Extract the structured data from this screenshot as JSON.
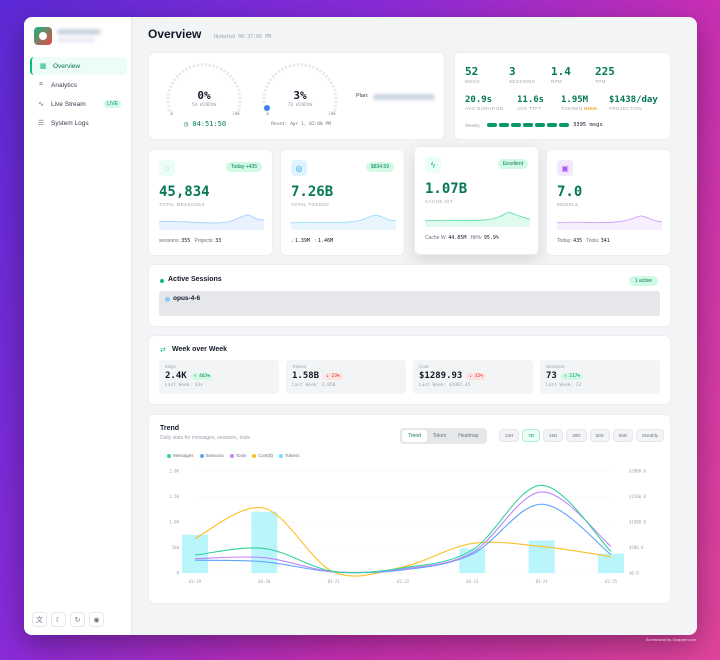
{
  "colors": {
    "accent": "#10b981",
    "messages": "#34d399",
    "sessions": "#60a5fa",
    "tools": "#c084fc",
    "cost": "#fbbf24",
    "tokens": "#67e8f9"
  },
  "sidebar": {
    "items": [
      {
        "label": "Overview",
        "icon": "grid-icon",
        "glyph": "▦",
        "active": true
      },
      {
        "label": "Analytics",
        "icon": "chart-icon",
        "glyph": "⌗",
        "active": false
      },
      {
        "label": "Live Stream",
        "icon": "activity-icon",
        "glyph": "∿",
        "active": false,
        "badge": "LIVE"
      },
      {
        "label": "System Logs",
        "icon": "list-icon",
        "glyph": "☰",
        "active": false
      }
    ],
    "footer_icons": [
      "translate-icon",
      "moon-icon",
      "refresh-icon",
      "privacy-icon"
    ]
  },
  "header": {
    "title": "Overview",
    "updated": "Updated 06:37:05 PM"
  },
  "usage": {
    "five_hour": {
      "percent": "0%",
      "label": "5H WINDOW",
      "reset": "04:51:50",
      "min": "0",
      "max": "100"
    },
    "seven_day": {
      "percent": "3%",
      "label": "7D WINDOW",
      "reset": "Reset: Apr 1, 02:00 PM",
      "min": "0",
      "max": "100"
    },
    "plan_label": "Plan:"
  },
  "stats": {
    "msgs": {
      "value": "52",
      "label": "MSGS"
    },
    "sessions": {
      "value": "3",
      "label": "SESSIONS"
    },
    "rpm": {
      "value": "1.4",
      "label": "RPM"
    },
    "tpm": {
      "value": "225",
      "label": "TPM"
    },
    "avg_duration": {
      "value": "20.9s",
      "label": "AVG DURATION"
    },
    "avg_ttft": {
      "value": "11.6s",
      "label": "AVG TTFT"
    },
    "tok_min": {
      "value": "1.95M",
      "label": "TOK/MIN",
      "tag": "HIGH"
    },
    "projection": {
      "value": "$1438/day",
      "label": "PROJECTION"
    },
    "weekly": {
      "label": "Weekly",
      "value": "3395 msgs"
    }
  },
  "kpis": [
    {
      "icon": "message-icon",
      "glyph": "◌",
      "badge": "Today +435",
      "value": "45,834",
      "label": "TOTAL MESSAGES",
      "foot_a_label": "sessions:",
      "foot_a": "355",
      "foot_b_label": "Projects:",
      "foot_b": "33"
    },
    {
      "icon": "coins-icon",
      "glyph": "◎",
      "badge": "$834.59",
      "value": "7.26B",
      "label": "TOTAL TOKENS",
      "foot_a_label": "↓",
      "foot_a": "1.39M",
      "foot_b_label": "↑",
      "foot_b": "1.46M"
    },
    {
      "icon": "bolt-icon",
      "glyph": "ϟ",
      "badge": "Excellent",
      "value": "1.07B",
      "label": "CACHE HIT",
      "foot_a_label": "Cache W:",
      "foot_a": "44.85M",
      "foot_b_label": "Hit%:",
      "foot_b": "95.9%"
    },
    {
      "icon": "cube-icon",
      "glyph": "▣",
      "badge": "",
      "value": "7.0",
      "label": "MODELS",
      "foot_a_label": "Today:",
      "foot_a": "435",
      "foot_b_label": "Tools:",
      "foot_b": "341"
    }
  ],
  "sessions": {
    "title": "Active Sessions",
    "badge": "1 active",
    "items": [
      {
        "model": "opus-4-6"
      }
    ]
  },
  "week": {
    "title": "Week over Week",
    "cards": [
      {
        "label": "Msgs",
        "value": "2.4K",
        "change": "↑ 463%",
        "dir": "up",
        "last": "Last Week: 43x"
      },
      {
        "label": "Tokens",
        "value": "1.58B",
        "change": "↓ 23%",
        "dir": "down",
        "last": "Last Week: 2.05B"
      },
      {
        "label": "Cost",
        "value": "$1289.93",
        "change": "↓ 32%",
        "dir": "down",
        "last": "Last Week: $1902.45"
      },
      {
        "label": "Sessions",
        "value": "73",
        "change": "↑ 217%",
        "dir": "up",
        "last": "Last Week: 23"
      }
    ]
  },
  "trend": {
    "title": "Trend",
    "subtitle": "Daily stats for messages, sessions, tools",
    "modes": [
      "Trend",
      "Token",
      "Heatmap"
    ],
    "active_mode": "Trend",
    "ranges": [
      "24H",
      "7D",
      "15D",
      "30D",
      "60D",
      "90D",
      "Monthly"
    ],
    "active_range": "7D"
  },
  "chart_data": {
    "type": "line",
    "categories": [
      "03-19",
      "03-20",
      "03-21",
      "03-22",
      "03-23",
      "03-24",
      "03-25"
    ],
    "series": [
      {
        "name": "Messages",
        "values": [
          350,
          480,
          30,
          100,
          450,
          1720,
          420
        ]
      },
      {
        "name": "Sessions",
        "values": [
          250,
          220,
          20,
          60,
          370,
          1350,
          360
        ]
      },
      {
        "name": "Tools",
        "values": [
          280,
          300,
          25,
          80,
          400,
          1590,
          520
        ]
      },
      {
        "name": "Cost($)",
        "values": [
          680,
          1270,
          20,
          120,
          580,
          520,
          320
        ]
      },
      {
        "name": "Tokens",
        "values": [
          750,
          1200,
          0,
          0,
          480,
          640,
          380
        ]
      }
    ],
    "y_left_ticks": [
      "2.0K",
      "1.5K",
      "1.0K",
      "500",
      "0"
    ],
    "y_right_ticks": [
      "$2000.0",
      "$1500.0",
      "$1000.0",
      "$500.0",
      "$0.0"
    ],
    "ylim": [
      0,
      2000
    ],
    "grid": true,
    "legend": "top-left"
  },
  "watermark": "Screenshot by Xnapper.com"
}
